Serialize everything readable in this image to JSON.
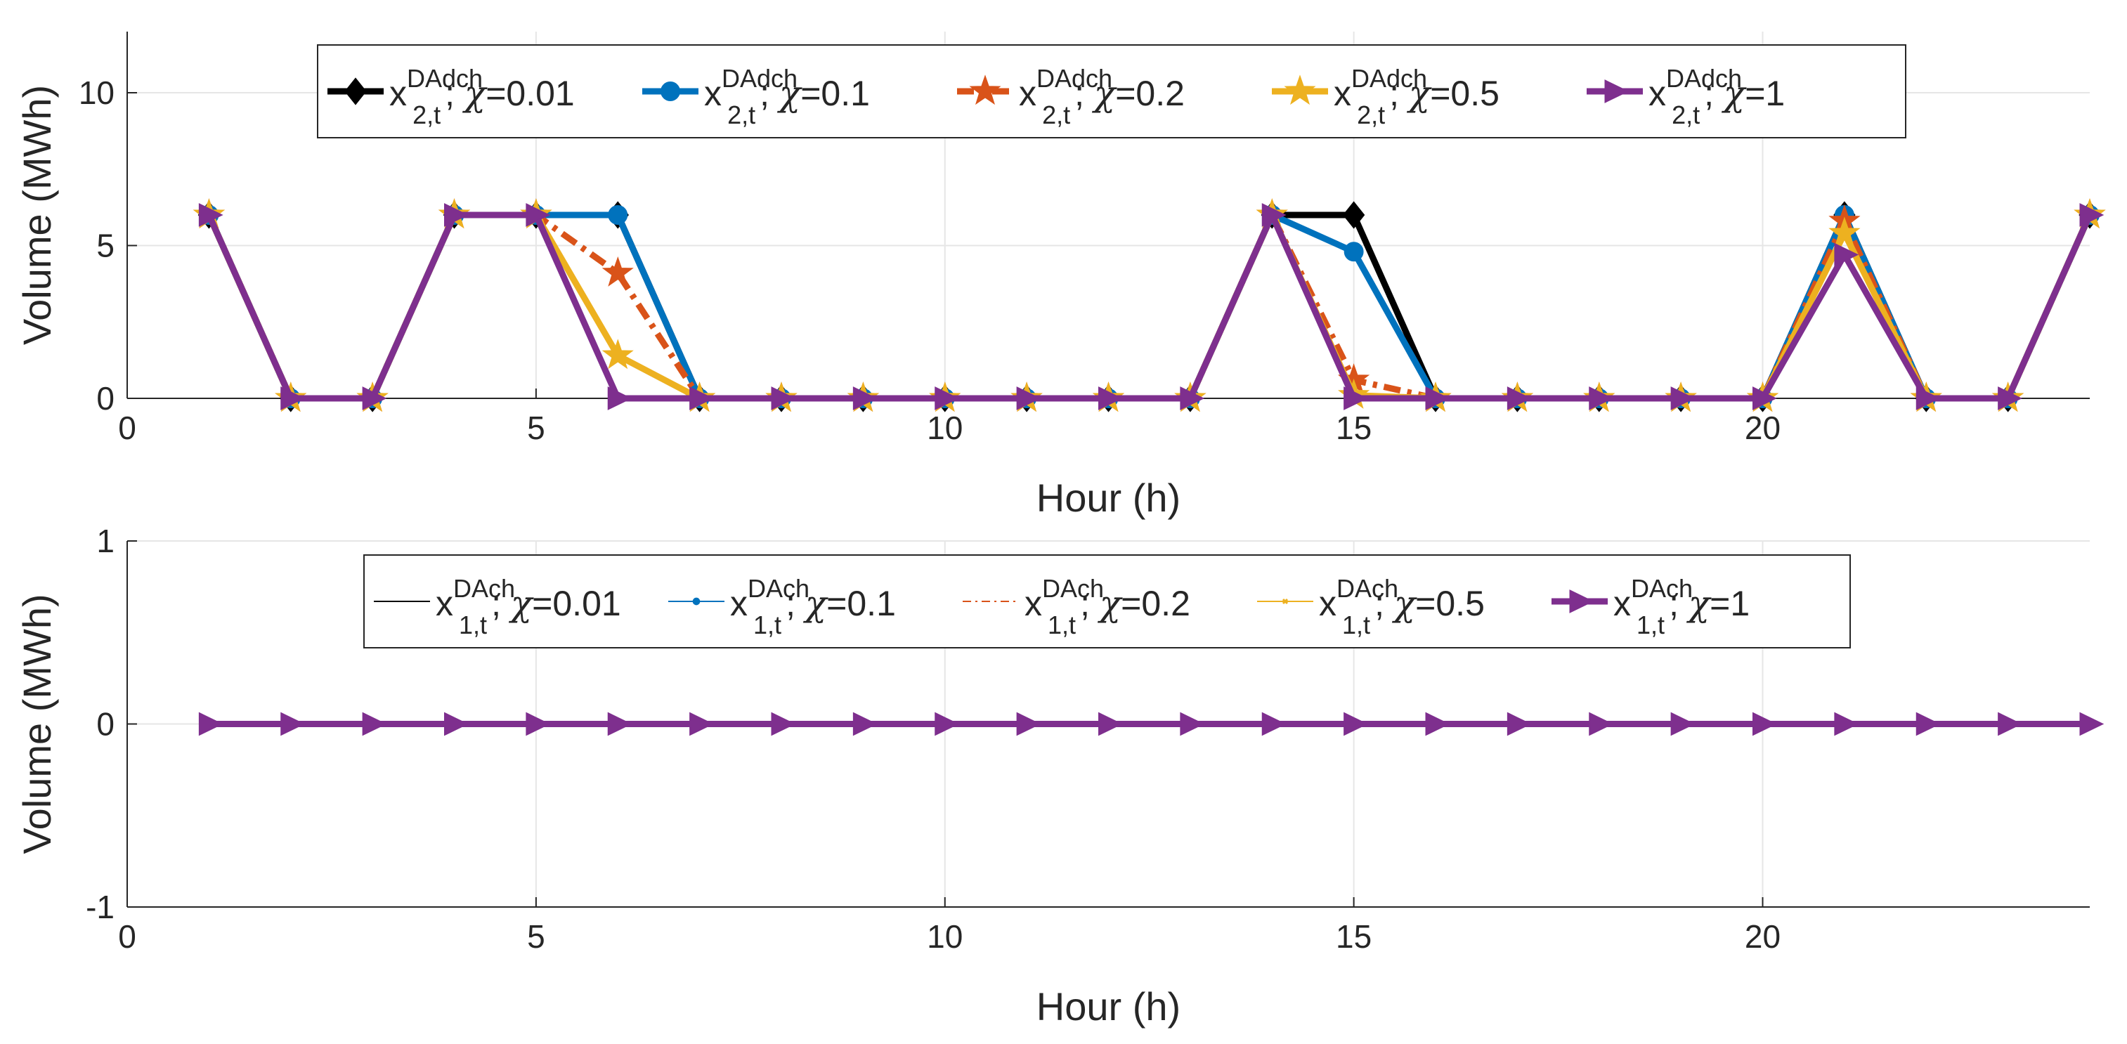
{
  "chart_data": [
    {
      "type": "line",
      "xlabel": "Hour (h)",
      "ylabel": "Volume (MWh)",
      "xlim": [
        0,
        24
      ],
      "ylim": [
        0,
        12
      ],
      "xticks": [
        0,
        5,
        10,
        15,
        20
      ],
      "yticks": [
        0,
        5,
        10
      ],
      "grid": true,
      "legend_position": "top-center",
      "x": [
        1,
        2,
        3,
        4,
        5,
        6,
        7,
        8,
        9,
        10,
        11,
        12,
        13,
        14,
        15,
        16,
        17,
        18,
        19,
        20,
        21,
        22,
        23,
        24
      ],
      "series": [
        {
          "name": "chi=0.01",
          "var": "x",
          "sup": "DAdch",
          "sub": "2,t",
          "chi": "=0.01",
          "color": "#000000",
          "marker": "diamond",
          "dash": "",
          "values": [
            6,
            0,
            0,
            6,
            6,
            6,
            0,
            0,
            0,
            0,
            0,
            0,
            0,
            6,
            6,
            0,
            0,
            0,
            0,
            0,
            6,
            0,
            0,
            6
          ]
        },
        {
          "name": "chi=0.1",
          "var": "x",
          "sup": "DAdch",
          "sub": "2,t",
          "chi": "=0.1",
          "color": "#0072BD",
          "marker": "circle",
          "dash": "",
          "values": [
            6,
            0,
            0,
            6,
            6,
            6,
            0,
            0,
            0,
            0,
            0,
            0,
            0,
            6,
            4.8,
            0,
            0,
            0,
            0,
            0,
            6,
            0,
            0,
            6
          ]
        },
        {
          "name": "chi=0.2",
          "var": "x",
          "sup": "DAdch",
          "sub": "2,t",
          "chi": "=0.2",
          "color": "#D95319",
          "marker": "star",
          "dash": "24,10,6,10",
          "values": [
            6,
            0,
            0,
            6,
            6,
            4.1,
            0,
            0,
            0,
            0,
            0,
            0,
            0,
            6,
            0.6,
            0,
            0,
            0,
            0,
            0,
            5.8,
            0,
            0,
            6
          ]
        },
        {
          "name": "chi=0.5",
          "var": "x",
          "sup": "DAdch",
          "sub": "2,t",
          "chi": "=0.5",
          "color": "#EDB120",
          "marker": "star",
          "dash": "",
          "values": [
            6,
            0,
            0,
            6,
            6,
            1.4,
            0,
            0,
            0,
            0,
            0,
            0,
            0,
            6,
            0.1,
            0,
            0,
            0,
            0,
            0,
            5.4,
            0,
            0,
            6
          ]
        },
        {
          "name": "chi=1",
          "var": "x",
          "sup": "DAdch",
          "sub": "2,t",
          "chi": "=1",
          "color": "#7E2F8E",
          "marker": "triangle-right",
          "dash": "",
          "values": [
            6,
            0,
            0,
            6,
            6,
            0,
            0,
            0,
            0,
            0,
            0,
            0,
            0,
            6,
            0,
            0,
            0,
            0,
            0,
            0,
            4.7,
            0,
            0,
            6
          ]
        }
      ]
    },
    {
      "type": "line",
      "xlabel": "Hour (h)",
      "ylabel": "Volume (MWh)",
      "xlim": [
        0,
        24
      ],
      "ylim": [
        -1,
        1
      ],
      "xticks": [
        0,
        5,
        10,
        15,
        20
      ],
      "yticks": [
        -1,
        0,
        1
      ],
      "grid": true,
      "legend_position": "top-center",
      "x": [
        1,
        2,
        3,
        4,
        5,
        6,
        7,
        8,
        9,
        10,
        11,
        12,
        13,
        14,
        15,
        16,
        17,
        18,
        19,
        20,
        21,
        22,
        23,
        24
      ],
      "series": [
        {
          "name": "chi=0.01",
          "var": "x",
          "sup": "DAch",
          "sub": "1,t",
          "chi": "=0.01",
          "color": "#000000",
          "marker": "none",
          "dash": "",
          "values": [
            0,
            0,
            0,
            0,
            0,
            0,
            0,
            0,
            0,
            0,
            0,
            0,
            0,
            0,
            0,
            0,
            0,
            0,
            0,
            0,
            0,
            0,
            0,
            0
          ]
        },
        {
          "name": "chi=0.1",
          "var": "x",
          "sup": "DAch",
          "sub": "1,t",
          "chi": "=0.1",
          "color": "#0072BD",
          "marker": "circle",
          "dash": "",
          "values": [
            0,
            0,
            0,
            0,
            0,
            0,
            0,
            0,
            0,
            0,
            0,
            0,
            0,
            0,
            0,
            0,
            0,
            0,
            0,
            0,
            0,
            0,
            0,
            0
          ]
        },
        {
          "name": "chi=0.2",
          "var": "x",
          "sup": "DAch",
          "sub": "1,t",
          "chi": "=0.2",
          "color": "#D95319",
          "marker": "none",
          "dash": "12,6,3,6",
          "values": [
            0,
            0,
            0,
            0,
            0,
            0,
            0,
            0,
            0,
            0,
            0,
            0,
            0,
            0,
            0,
            0,
            0,
            0,
            0,
            0,
            0,
            0,
            0,
            0
          ]
        },
        {
          "name": "chi=0.5",
          "var": "x",
          "sup": "DAch",
          "sub": "1,t",
          "chi": "=0.5",
          "color": "#EDB120",
          "marker": "cross",
          "dash": "",
          "values": [
            0,
            0,
            0,
            0,
            0,
            0,
            0,
            0,
            0,
            0,
            0,
            0,
            0,
            0,
            0,
            0,
            0,
            0,
            0,
            0,
            0,
            0,
            0,
            0
          ]
        },
        {
          "name": "chi=1",
          "var": "x",
          "sup": "DAch",
          "sub": "1,t",
          "chi": "=1",
          "color": "#7E2F8E",
          "marker": "triangle-right",
          "dash": "",
          "values": [
            0,
            0,
            0,
            0,
            0,
            0,
            0,
            0,
            0,
            0,
            0,
            0,
            0,
            0,
            0,
            0,
            0,
            0,
            0,
            0,
            0,
            0,
            0,
            0
          ]
        }
      ]
    }
  ]
}
